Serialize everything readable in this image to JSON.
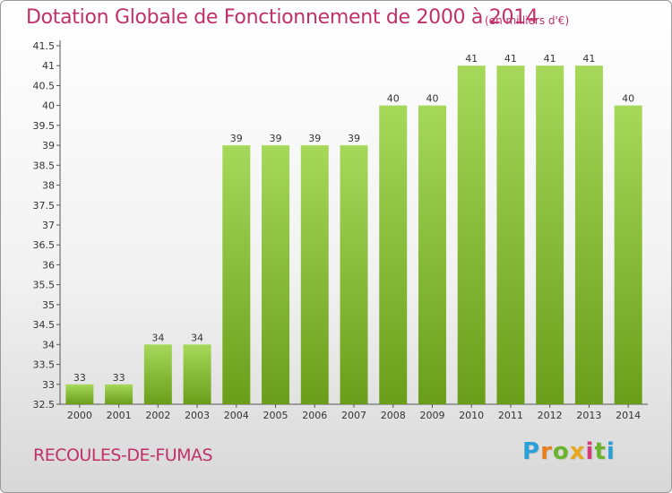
{
  "title": "Dotation Globale de Fonctionnement de 2000 à 2014",
  "subtitle": "(en milliers d'€)",
  "commune": "RECOULES-DE-FUMAS",
  "logo": {
    "letters": [
      "P",
      "r",
      "o",
      "x",
      "i",
      "t",
      "i"
    ],
    "colors": [
      "#2aa0d8",
      "#e87f1e",
      "#6ab42d",
      "#e8a81e",
      "#d23c7a",
      "#6ab42d",
      "#2aa0d8"
    ]
  },
  "chart_data": {
    "type": "bar",
    "title": "Dotation Globale de Fonctionnement de 2000 à 2014",
    "subtitle": "(en milliers d'€)",
    "xlabel": "",
    "ylabel": "",
    "categories": [
      "2000",
      "2001",
      "2002",
      "2003",
      "2004",
      "2005",
      "2006",
      "2007",
      "2008",
      "2009",
      "2010",
      "2011",
      "2012",
      "2013",
      "2014"
    ],
    "values": [
      33,
      33,
      34,
      34,
      39,
      39,
      39,
      39,
      40,
      40,
      41,
      41,
      41,
      41,
      40
    ],
    "data_labels": [
      "33",
      "33",
      "34",
      "34",
      "39",
      "39",
      "39",
      "39",
      "40",
      "40",
      "41",
      "41",
      "41",
      "41",
      "40"
    ],
    "ylim": [
      32.5,
      41.5
    ],
    "yticks": [
      "32.5",
      "33",
      "33.5",
      "34",
      "34.5",
      "35",
      "35.5",
      "36",
      "36.5",
      "37",
      "37.5",
      "38",
      "38.5",
      "39",
      "39.5",
      "40",
      "40.5",
      "41",
      "41.5"
    ],
    "grid": false,
    "legend": "none",
    "bar_color_light": "#a6d85a",
    "bar_color_dark": "#6a9e1a"
  }
}
